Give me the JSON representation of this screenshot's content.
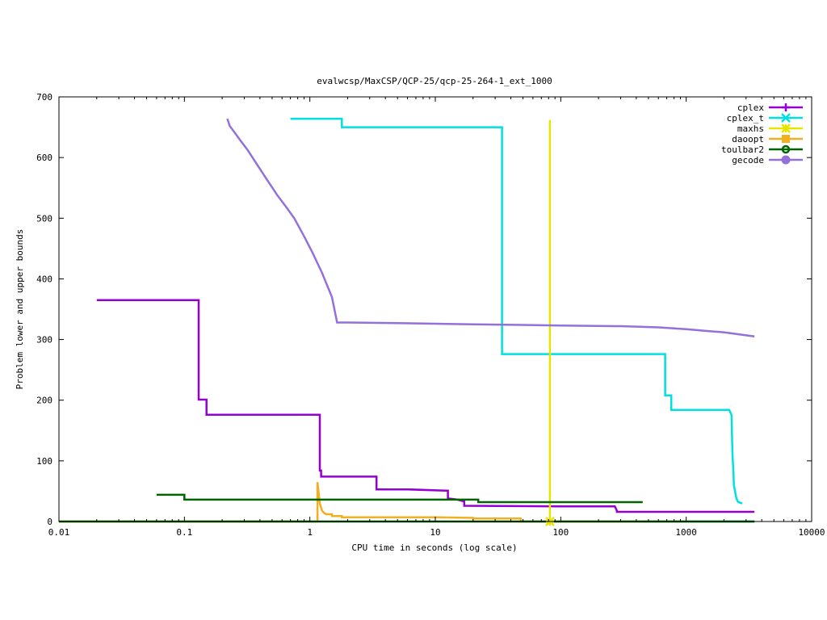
{
  "chart_data": {
    "type": "line",
    "title": "evalwcsp/MaxCSP/QCP-25/qcp-25-264-1_ext_1000",
    "xlabel": "CPU time in seconds (log scale)",
    "ylabel": "Problem lower and upper bounds",
    "xscale": "log",
    "xlim": [
      0.01,
      10000
    ],
    "ylim": [
      0,
      700
    ],
    "x_ticks": [
      0.01,
      0.1,
      1,
      10,
      100,
      1000,
      10000
    ],
    "x_tick_labels": [
      "0.01",
      "0.1",
      "1",
      "10",
      "100",
      "1000",
      "10000"
    ],
    "y_ticks": [
      0,
      100,
      200,
      300,
      400,
      500,
      600,
      700
    ],
    "y_tick_labels": [
      "0",
      "100",
      "200",
      "300",
      "400",
      "500",
      "600",
      "700"
    ],
    "grid": false,
    "legend_position": "top-right",
    "series": [
      {
        "name": "cplex",
        "color": "#9400d3",
        "marker": "plus",
        "x": [
          0.02,
          0.13,
          0.13,
          0.15,
          0.15,
          1.2,
          1.2,
          1.23,
          1.23,
          3.4,
          3.4,
          6,
          12,
          12.6,
          12.6,
          15,
          17,
          17,
          100,
          270,
          280,
          280,
          3500
        ],
        "y": [
          365,
          365,
          201,
          201,
          176,
          176,
          84,
          84,
          74,
          74,
          53,
          53,
          51,
          51,
          38,
          36,
          33,
          26,
          25,
          25,
          18,
          16,
          16
        ]
      },
      {
        "name": "cplex_t",
        "color": "#00e0e0",
        "marker": "cross",
        "x": [
          0.7,
          1.8,
          1.8,
          34,
          34,
          680,
          680,
          760,
          760,
          2200,
          2300,
          2320,
          2340,
          2380,
          2400,
          2450,
          2500,
          2550,
          2600,
          2800
        ],
        "y": [
          664,
          664,
          650,
          650,
          276,
          276,
          208,
          208,
          184,
          184,
          175,
          140,
          110,
          80,
          60,
          50,
          40,
          35,
          32,
          30
        ],
        "lower_x": [
          450,
          3500
        ],
        "lower_y": [
          0,
          0
        ]
      },
      {
        "name": "maxhs",
        "color": "#e5e500",
        "marker": "star",
        "x": [
          82,
          82
        ],
        "y": [
          662,
          0
        ]
      },
      {
        "name": "daoopt",
        "color": "#f0b020",
        "marker": "square",
        "x": [
          0.01,
          1.15,
          1.15,
          1.2,
          1.25,
          1.3,
          1.35,
          1.5,
          1.5,
          1.8,
          1.8,
          10,
          20,
          20,
          48,
          48,
          1000
        ],
        "y": [
          0,
          0,
          65,
          30,
          18,
          14,
          12,
          12,
          9,
          9,
          7,
          7,
          6,
          5,
          5,
          0,
          0
        ]
      },
      {
        "name": "toulbar2",
        "color": "#006400",
        "marker": "circle",
        "x": [
          0.06,
          0.1,
          0.1,
          22,
          22,
          450
        ],
        "y": [
          44,
          44,
          36,
          36,
          32,
          32
        ],
        "lower_x": [
          0.01,
          3500
        ],
        "lower_y": [
          0,
          0
        ]
      },
      {
        "name": "gecode",
        "color": "#9370db",
        "marker": "filled-circle",
        "x": [
          0.22,
          0.23,
          0.25,
          0.28,
          0.32,
          0.37,
          0.45,
          0.55,
          0.65,
          0.75,
          0.9,
          1.05,
          1.25,
          1.5,
          1.65,
          2,
          5,
          10,
          20,
          50,
          100,
          300,
          600,
          1000,
          1500,
          2000,
          3500
        ],
        "y": [
          664,
          652,
          642,
          628,
          612,
          592,
          565,
          538,
          518,
          500,
          470,
          443,
          410,
          370,
          328,
          328,
          327,
          326,
          325,
          324,
          323,
          322,
          320,
          317,
          314,
          312,
          305
        ]
      }
    ]
  }
}
